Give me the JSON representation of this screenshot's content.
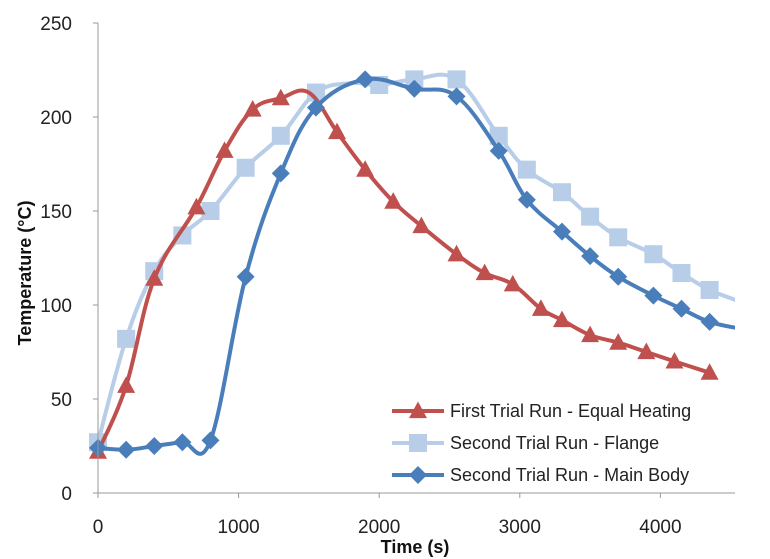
{
  "chart_data": {
    "type": "line",
    "title": "",
    "xlabel": "Time (s)",
    "ylabel": "Temperature (°C)",
    "xlim": [
      0,
      4500
    ],
    "ylim": [
      0,
      250
    ],
    "xticks": [
      0,
      1000,
      2000,
      3000,
      4000
    ],
    "yticks": [
      0,
      50,
      100,
      150,
      200,
      250
    ],
    "grid": false,
    "legend_position": "bottom-right",
    "series": [
      {
        "name": "First Trial Run - Equal Heating",
        "color": "#c0504d",
        "marker": "triangle",
        "x": [
          0,
          200,
          400,
          700,
          900,
          1100,
          1300,
          1500,
          1700,
          1900,
          2100,
          2300,
          2550,
          2750,
          2950,
          3150,
          3300,
          3500,
          3700,
          3900,
          4100,
          4350
        ],
        "y": [
          22,
          57,
          114,
          152,
          182,
          204,
          210,
          213,
          192,
          172,
          155,
          142,
          127,
          117,
          111,
          98,
          92,
          84,
          80,
          75,
          70,
          64
        ],
        "markers_x": [
          0,
          200,
          400,
          700,
          900,
          1100,
          1300,
          1700,
          1900,
          2100,
          2300,
          2550,
          2750,
          2950,
          3150,
          3300,
          3500,
          3700,
          3900,
          4100,
          4350
        ],
        "markers_y": [
          22,
          57,
          114,
          152,
          182,
          204,
          210,
          192,
          172,
          155,
          142,
          127,
          117,
          111,
          98,
          92,
          84,
          80,
          75,
          70,
          64
        ]
      },
      {
        "name": "Second Trial Run - Flange",
        "color": "#b7cde8",
        "marker": "square",
        "x": [
          0,
          200,
          400,
          600,
          800,
          1050,
          1300,
          1550,
          1800,
          2000,
          2250,
          2550,
          2850,
          3050,
          3300,
          3500,
          3700,
          3950,
          4150,
          4350,
          4600
        ],
        "y": [
          27,
          82,
          118,
          137,
          150,
          173,
          190,
          213,
          218,
          217,
          220,
          220,
          190,
          172,
          160,
          147,
          136,
          127,
          117,
          108,
          101
        ],
        "markers_x": [
          0,
          200,
          400,
          600,
          800,
          1050,
          1300,
          1550,
          2000,
          2250,
          2550,
          2850,
          3050,
          3300,
          3500,
          3700,
          3950,
          4150,
          4350
        ],
        "markers_y": [
          27,
          82,
          118,
          137,
          150,
          173,
          190,
          213,
          217,
          220,
          220,
          190,
          172,
          160,
          147,
          136,
          127,
          117,
          108
        ]
      },
      {
        "name": "Second Trial Run - Main Body",
        "color": "#4a7ebb",
        "marker": "diamond",
        "x": [
          0,
          200,
          400,
          600,
          800,
          1050,
          1300,
          1550,
          1900,
          2250,
          2550,
          2850,
          3050,
          3300,
          3500,
          3700,
          3950,
          4150,
          4350,
          4600
        ],
        "y": [
          24,
          23,
          25,
          27,
          28,
          115,
          170,
          205,
          220,
          215,
          211,
          182,
          156,
          139,
          126,
          115,
          105,
          98,
          91,
          87
        ],
        "markers_x": [
          0,
          200,
          400,
          600,
          800,
          1050,
          1300,
          1550,
          1900,
          2250,
          2550,
          2850,
          3050,
          3300,
          3500,
          3700,
          3950,
          4150,
          4350
        ],
        "markers_y": [
          24,
          23,
          25,
          27,
          28,
          115,
          170,
          205,
          220,
          215,
          211,
          182,
          156,
          139,
          126,
          115,
          105,
          98,
          91
        ]
      }
    ]
  }
}
